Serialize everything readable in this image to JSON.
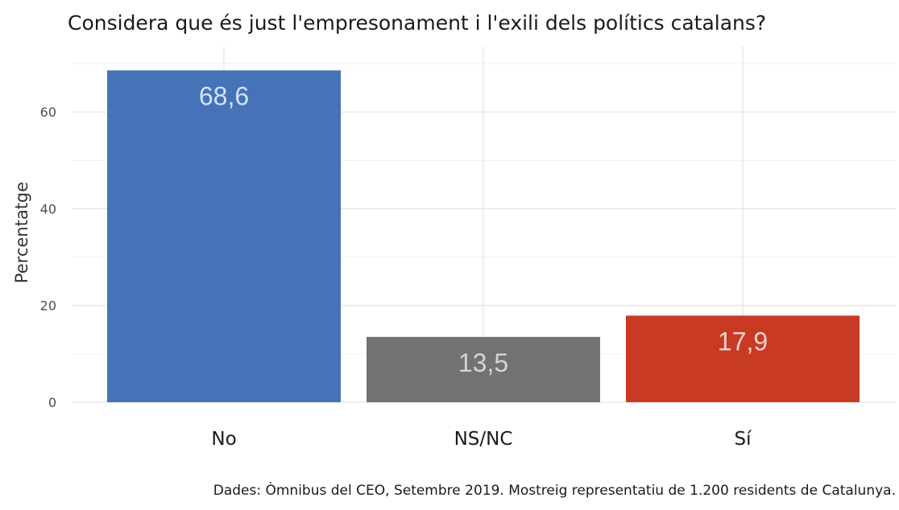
{
  "chart_data": {
    "type": "bar",
    "title": "Considera que és just l'empresonament i l'exili dels polítics catalans?",
    "ylabel": "Percentatge",
    "xlabel": "",
    "caption": "Dades: Òmnibus del CEO, Setembre 2019. Mostreig representatiu de 1.200 residents de Catalunya.",
    "categories": [
      "No",
      "NS/NC",
      "Sí"
    ],
    "values": [
      68.6,
      13.5,
      17.9
    ],
    "value_labels": [
      "68,6",
      "13,5",
      "17,9"
    ],
    "colors": [
      "#4672b7",
      "#727272",
      "#c83a24"
    ],
    "label_colors": [
      "#cfe3ff",
      "#d4d4d4",
      "#f4d2cb"
    ],
    "ylim": [
      0,
      73.5
    ],
    "yticks": [
      0,
      20,
      40,
      60
    ],
    "ytick_labels": [
      "0",
      "20",
      "40",
      "60"
    ],
    "grid": true,
    "legend": "none"
  }
}
